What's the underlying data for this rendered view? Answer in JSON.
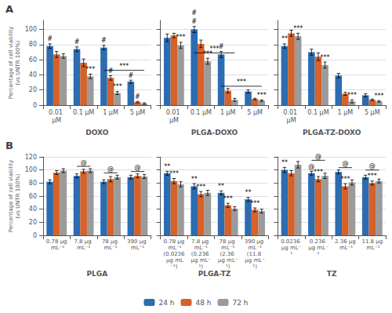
{
  "chart_data": [
    {
      "type": "bar",
      "title": "A",
      "xlabel": "DOXO",
      "ylabel": "Percentage of cell viability\n(vs UNTR 100%)",
      "categories": [
        "0.01 μM",
        "0.1 μM",
        "1 μM",
        "5 μM"
      ],
      "series": [
        {
          "name": "24 h",
          "color": "#2C6CB0",
          "values": [
            78,
            74,
            76,
            31
          ],
          "errors": [
            3,
            3,
            3,
            2
          ]
        },
        {
          "name": "48 h",
          "color": "#D4622A",
          "values": [
            67,
            56,
            36,
            4
          ],
          "errors": [
            4,
            5,
            3,
            1
          ]
        },
        {
          "name": "72 h",
          "color": "#9B9B9B",
          "values": [
            65,
            38,
            16,
            2
          ],
          "errors": [
            3,
            3,
            2,
            1
          ]
        }
      ],
      "ylim": [
        0,
        112
      ],
      "yticks": [
        0,
        20,
        40,
        60,
        80,
        100
      ],
      "grid": true,
      "legend": "bottom",
      "annotations": [
        {
          "text": "#",
          "category": "0.01 μM",
          "series": "24 h"
        },
        {
          "text": "#",
          "category": "0.1 μM",
          "series": "24 h"
        },
        {
          "text": "#",
          "category": "1 μM",
          "series": "24 h"
        },
        {
          "text": "#",
          "category": "1 μM",
          "series": "48 h"
        },
        {
          "text": "#",
          "category": "5 μM",
          "series": "24 h"
        },
        {
          "text": "#",
          "category": "5 μM",
          "series": "48 h"
        },
        {
          "text": "***",
          "category": "0.1 μM",
          "series": "72 h"
        },
        {
          "text": "***",
          "category": "1 μM",
          "series": "72 h"
        },
        {
          "text": "***",
          "from": {
            "category": "1 μM",
            "series": "24 h"
          },
          "to": {
            "category": "5 μM",
            "series": "72 h"
          },
          "y": 46
        }
      ]
    },
    {
      "type": "bar",
      "xlabel": "PLGA-DOXO",
      "categories": [
        "0.01 μM",
        "0.1 μM",
        "1 μM",
        "5 μM"
      ],
      "series": [
        {
          "name": "24 h",
          "color": "#2C6CB0",
          "values": [
            89,
            100,
            67,
            18
          ],
          "errors": [
            5,
            4,
            4,
            2
          ]
        },
        {
          "name": "48 h",
          "color": "#D4622A",
          "values": [
            92,
            81,
            19,
            8
          ],
          "errors": [
            3,
            5,
            3,
            1
          ]
        },
        {
          "name": "72 h",
          "color": "#9B9B9B",
          "values": [
            79,
            58,
            7,
            6
          ],
          "errors": [
            4,
            4,
            2,
            1
          ]
        }
      ],
      "ylim": [
        0,
        112
      ],
      "yticks": [
        0,
        20,
        40,
        60,
        80,
        100
      ],
      "grid": true,
      "legend": "bottom",
      "tick_labels": "x",
      "annotations": [
        {
          "text": "#",
          "category": "0.1 μM",
          "series": "24 h"
        },
        {
          "text": "#",
          "category": "1 μM",
          "series": "24 h"
        },
        {
          "text": "***",
          "category": "0.01 μM",
          "series": "72 h"
        },
        {
          "text": "***",
          "category": "0.1 μM",
          "series": "72 h"
        },
        {
          "text": "***",
          "category": "5 μM",
          "series": "72 h"
        },
        {
          "text": "***",
          "from": {
            "category": "0.1 μM",
            "series": "24 h"
          },
          "to": {
            "category": "1 μM",
            "series": "72 h"
          },
          "y": 69
        },
        {
          "text": "***",
          "from": {
            "category": "1 μM",
            "series": "24 h"
          },
          "to": {
            "category": "5 μM",
            "series": "72 h"
          },
          "y": 25
        },
        {
          "text": "#",
          "category": "0.1 μM",
          "series": "24 h",
          "y": 112
        }
      ]
    },
    {
      "type": "bar",
      "xlabel": "PLGA-TZ-DOXO",
      "categories": [
        "0.01 μM",
        "0.1 μM",
        "1 μM",
        "5 μM"
      ],
      "series": [
        {
          "name": "24 h",
          "color": "#2C6CB0",
          "values": [
            78,
            70,
            39,
            13
          ],
          "errors": [
            3,
            4,
            3,
            2
          ]
        },
        {
          "name": "48 h",
          "color": "#D4622A",
          "values": [
            95,
            64,
            15,
            7
          ],
          "errors": [
            4,
            5,
            2,
            1
          ]
        },
        {
          "name": "72 h",
          "color": "#9B9B9B",
          "values": [
            91,
            53,
            5,
            5
          ],
          "errors": [
            4,
            4,
            2,
            1
          ]
        }
      ],
      "ylim": [
        0,
        112
      ],
      "yticks": [
        0,
        20,
        40,
        60,
        80,
        100
      ],
      "grid": true,
      "legend": "bottom",
      "tick_labels": "x",
      "annotations": [
        {
          "text": "**",
          "category": "0.01 μM",
          "series": "24 h"
        },
        {
          "text": "***",
          "category": "0.01 μM",
          "series": "72 h"
        },
        {
          "text": "***",
          "category": "0.1 μM",
          "series": "72 h"
        },
        {
          "text": "***",
          "category": "1 μM",
          "series": "72 h"
        },
        {
          "text": "***",
          "category": "5 μM",
          "series": "72 h"
        }
      ]
    },
    {
      "type": "bar",
      "title": "B",
      "xlabel": "PLGA",
      "ylabel": "Percentage of cell viability\n(vs UNTR 100%)",
      "categories": [
        "0.78 μg mL⁻¹",
        "7.8 μg mL⁻¹",
        "78 μg mL⁻¹",
        "390 μg mL⁻¹"
      ],
      "series": [
        {
          "name": "24 h",
          "color": "#2C6CB0",
          "values": [
            82,
            91,
            82,
            89
          ],
          "errors": [
            3,
            3,
            3,
            3
          ]
        },
        {
          "name": "48 h",
          "color": "#D4622A",
          "values": [
            96,
            98,
            86,
            91
          ],
          "errors": [
            3,
            3,
            4,
            3
          ]
        },
        {
          "name": "72 h",
          "color": "#9B9B9B",
          "values": [
            99,
            99,
            89,
            90
          ],
          "errors": [
            3,
            3,
            3,
            3
          ]
        }
      ],
      "ylim": [
        0,
        120
      ],
      "yticks": [
        0,
        20,
        40,
        60,
        80,
        100,
        120
      ],
      "grid": true,
      "legend": "bottom",
      "annotations": [
        {
          "text": "@",
          "from": {
            "category": "7.8 μg mL⁻¹",
            "series": "24 h"
          },
          "to": {
            "category": "7.8 μg mL⁻¹",
            "series": "72 h"
          }
        },
        {
          "text": "@",
          "from": {
            "category": "78 μg mL⁻¹",
            "series": "24 h"
          },
          "to": {
            "category": "78 μg mL⁻¹",
            "series": "72 h"
          }
        },
        {
          "text": "@",
          "from": {
            "category": "390 μg mL⁻¹",
            "series": "24 h"
          },
          "to": {
            "category": "390 μg mL⁻¹",
            "series": "72 h"
          }
        }
      ]
    },
    {
      "type": "bar",
      "xlabel": "PLGA-TZ",
      "categories": [
        "0.78 μg mL⁻¹\n(0.0236 μg mL⁻¹)",
        "7.8 μg mL⁻¹\n(0.236 μg mL⁻¹)",
        "78 μg mL⁻¹\n(2.36 μg mL⁻¹)",
        "390 μg mL⁻¹\n(11.8 μg mL⁻¹)"
      ],
      "series": [
        {
          "name": "24 h",
          "color": "#2C6CB0",
          "values": [
            95,
            75,
            65,
            55
          ],
          "errors": [
            3,
            4,
            3,
            3
          ]
        },
        {
          "name": "48 h",
          "color": "#D4622A",
          "values": [
            83,
            63,
            46,
            39
          ],
          "errors": [
            4,
            4,
            3,
            3
          ]
        },
        {
          "name": "72 h",
          "color": "#9B9B9B",
          "values": [
            78,
            65,
            41,
            37
          ],
          "errors": [
            4,
            4,
            3,
            3
          ]
        }
      ],
      "ylim": [
        0,
        120
      ],
      "yticks": [
        0,
        20,
        40,
        60,
        80,
        100,
        120
      ],
      "grid": true,
      "legend": "bottom",
      "tick_labels": "x",
      "annotations": [
        {
          "text": "**",
          "category": "0.78 μg mL⁻¹\n(0.0236 μg mL⁻¹)",
          "series": "24 h"
        },
        {
          "text": "***",
          "category": "0.78 μg mL⁻¹\n(0.0236 μg mL⁻¹)",
          "series": "48 h"
        },
        {
          "text": "**",
          "category": "7.8 μg mL⁻¹\n(0.236 μg mL⁻¹)",
          "series": "24 h"
        },
        {
          "text": "***",
          "category": "7.8 μg mL⁻¹\n(0.236 μg mL⁻¹)",
          "series": "48 h"
        },
        {
          "text": "**",
          "category": "78 μg mL⁻¹\n(2.36 μg mL⁻¹)",
          "series": "24 h"
        },
        {
          "text": "***",
          "category": "78 μg mL⁻¹\n(2.36 μg mL⁻¹)",
          "series": "48 h"
        },
        {
          "text": "**",
          "category": "390 μg mL⁻¹\n(11.8 μg mL⁻¹)",
          "series": "24 h"
        },
        {
          "text": "***",
          "category": "390 μg mL⁻¹\n(11.8 μg mL⁻¹)",
          "series": "48 h"
        }
      ]
    },
    {
      "type": "bar",
      "xlabel": "TZ",
      "categories": [
        "0.0236 μg mL⁻¹",
        "0.236 μg mL⁻¹",
        "2.36 μg mL⁻¹",
        "11.8 μg mL⁻¹"
      ],
      "series": [
        {
          "name": "24 h",
          "color": "#2C6CB0",
          "values": [
            100,
            95,
            97,
            89
          ],
          "errors": [
            4,
            3,
            3,
            3
          ]
        },
        {
          "name": "48 h",
          "color": "#D4622A",
          "values": [
            95,
            86,
            75,
            80
          ],
          "errors": [
            4,
            4,
            4,
            3
          ]
        },
        {
          "name": "72 h",
          "color": "#9B9B9B",
          "values": [
            108,
            91,
            81,
            83
          ],
          "errors": [
            5,
            4,
            4,
            3
          ]
        }
      ],
      "ylim": [
        0,
        120
      ],
      "yticks": [
        0,
        20,
        40,
        60,
        80,
        100,
        120
      ],
      "grid": true,
      "legend": "bottom",
      "tick_labels": "x",
      "annotations": [
        {
          "text": "**",
          "category": "0.0236 μg mL⁻¹",
          "series": "24 h"
        },
        {
          "text": "@",
          "from": {
            "category": "0.236 μg mL⁻¹",
            "series": "24 h"
          },
          "to": {
            "category": "0.236 μg mL⁻¹",
            "series": "72 h"
          }
        },
        {
          "text": "@",
          "from": {
            "category": "2.36 μg mL⁻¹",
            "series": "24 h"
          },
          "to": {
            "category": "2.36 μg mL⁻¹",
            "series": "72 h"
          }
        },
        {
          "text": "@",
          "from": {
            "category": "11.8 μg mL⁻¹",
            "series": "24 h"
          },
          "to": {
            "category": "11.8 μg mL⁻¹",
            "series": "72 h"
          }
        },
        {
          "text": "@",
          "category": "0.236 μg mL⁻¹",
          "series": "24 h"
        },
        {
          "text": "***",
          "category": "0.236 μg mL⁻¹",
          "series": "48 h"
        },
        {
          "text": "***",
          "category": "2.36 μg mL⁻¹",
          "series": "48 h"
        },
        {
          "text": "***",
          "category": "11.8 μg mL⁻¹",
          "series": "48 h"
        }
      ]
    }
  ]
}
